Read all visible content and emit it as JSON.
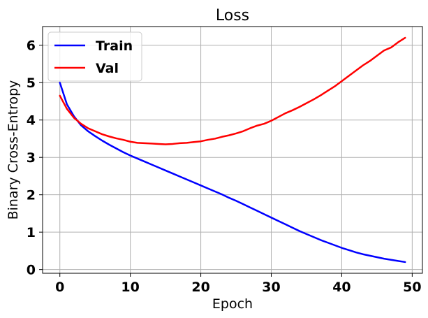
{
  "chart_data": {
    "type": "line",
    "title": "Loss",
    "xlabel": "Epoch",
    "ylabel": "Binary Cross-Entropy",
    "xlim": [
      -2.45,
      51.45
    ],
    "ylim": [
      -0.1,
      6.5
    ],
    "xticks": [
      0,
      10,
      20,
      30,
      40,
      50
    ],
    "yticks": [
      0,
      1,
      2,
      3,
      4,
      5,
      6
    ],
    "grid": true,
    "legend_position": "top-left",
    "x": [
      0,
      1,
      2,
      3,
      4,
      5,
      6,
      7,
      8,
      9,
      10,
      11,
      12,
      13,
      14,
      15,
      16,
      17,
      18,
      19,
      20,
      21,
      22,
      23,
      24,
      25,
      26,
      27,
      28,
      29,
      30,
      31,
      32,
      33,
      34,
      35,
      36,
      37,
      38,
      39,
      40,
      41,
      42,
      43,
      44,
      45,
      46,
      47,
      48,
      49
    ],
    "series": [
      {
        "name": "Train",
        "color": "#0000ff",
        "values": [
          5.0,
          4.42,
          4.1,
          3.86,
          3.7,
          3.57,
          3.45,
          3.34,
          3.24,
          3.14,
          3.05,
          2.97,
          2.89,
          2.81,
          2.73,
          2.65,
          2.57,
          2.49,
          2.41,
          2.33,
          2.25,
          2.17,
          2.09,
          2.01,
          1.92,
          1.84,
          1.75,
          1.66,
          1.57,
          1.48,
          1.39,
          1.3,
          1.21,
          1.12,
          1.03,
          0.95,
          0.87,
          0.79,
          0.72,
          0.65,
          0.58,
          0.52,
          0.46,
          0.41,
          0.37,
          0.33,
          0.29,
          0.26,
          0.23,
          0.2
        ]
      },
      {
        "name": "Val",
        "color": "#ff0000",
        "values": [
          4.65,
          4.3,
          4.06,
          3.9,
          3.78,
          3.7,
          3.62,
          3.56,
          3.51,
          3.47,
          3.42,
          3.39,
          3.38,
          3.37,
          3.36,
          3.35,
          3.36,
          3.38,
          3.39,
          3.41,
          3.43,
          3.47,
          3.5,
          3.55,
          3.59,
          3.64,
          3.7,
          3.78,
          3.85,
          3.9,
          3.98,
          4.08,
          4.18,
          4.26,
          4.35,
          4.45,
          4.55,
          4.66,
          4.78,
          4.9,
          5.04,
          5.18,
          5.32,
          5.46,
          5.58,
          5.72,
          5.86,
          5.94,
          6.08,
          6.2
        ]
      }
    ]
  }
}
